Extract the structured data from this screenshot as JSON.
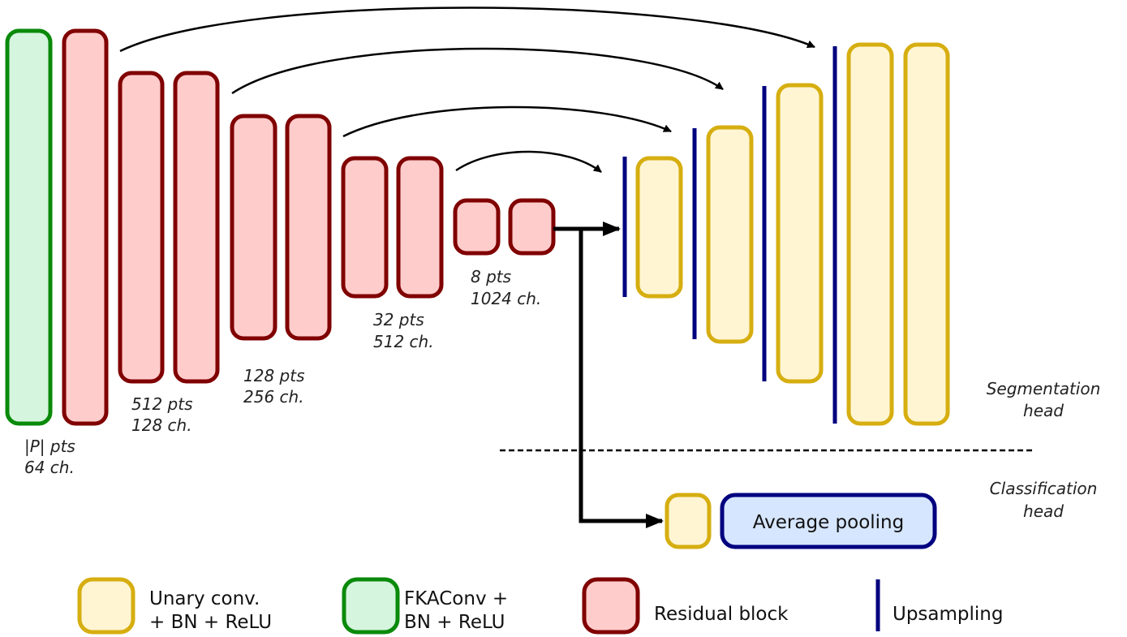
{
  "colors": {
    "residual_fill": "#FFCCCC",
    "residual_stroke": "#800000",
    "fka_fill": "#D5F5DE",
    "fka_stroke": "#0A8A0A",
    "unary_fill": "#FFF5D3",
    "unary_stroke": "#D6AE10",
    "upsample": "#00007F",
    "pool_fill": "#D6E6FF",
    "pool_stroke": "#00007F",
    "arrow": "#000000"
  },
  "encoder_labels": [
    {
      "pts": "|P| pts",
      "ch": "64 ch."
    },
    {
      "pts": "512 pts",
      "ch": "128 ch."
    },
    {
      "pts": "128 pts",
      "ch": "256 ch."
    },
    {
      "pts": "32 pts",
      "ch": "512 ch."
    },
    {
      "pts": "8 pts",
      "ch": "1024 ch."
    }
  ],
  "heads": {
    "segmentation": [
      "Segmentation",
      "head"
    ],
    "classification": [
      "Classification",
      "head"
    ]
  },
  "pooling_label": "Average pooling",
  "legend": [
    {
      "key": "unary",
      "lines": [
        "Unary conv.",
        "+ BN + ReLU"
      ]
    },
    {
      "key": "fka",
      "lines": [
        "FKAConv +",
        "BN + ReLU"
      ]
    },
    {
      "key": "residual",
      "lines": [
        "Residual block"
      ]
    },
    {
      "key": "upsample",
      "lines": [
        "Upsampling"
      ]
    }
  ]
}
